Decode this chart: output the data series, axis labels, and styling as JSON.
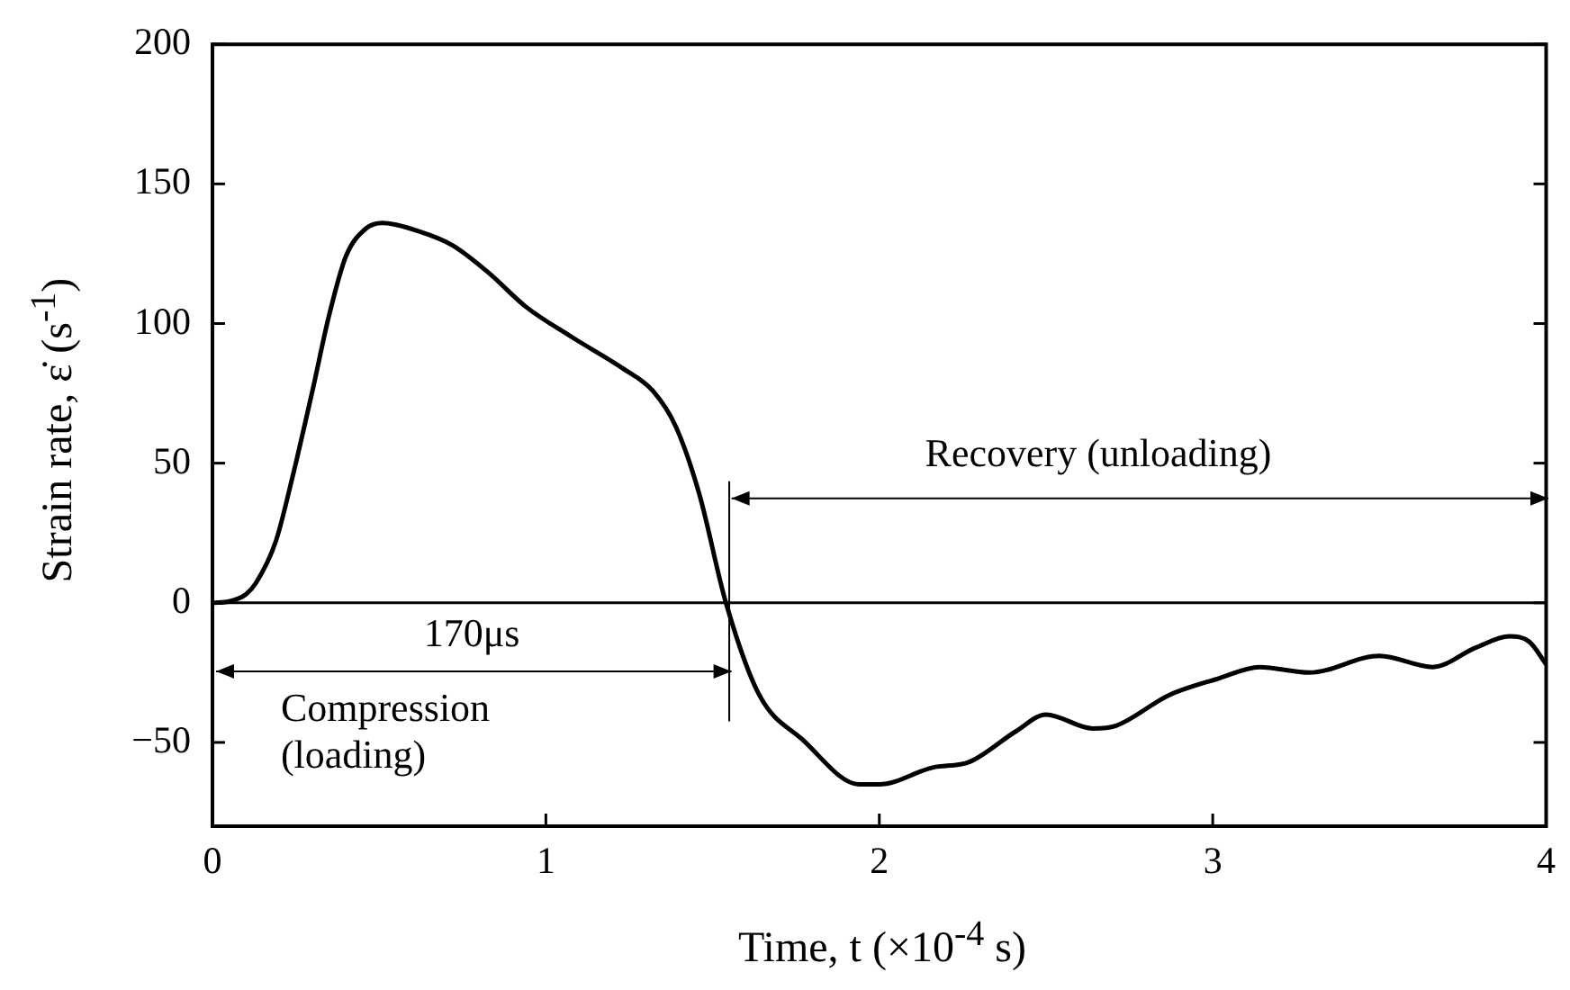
{
  "chart_data": {
    "type": "line",
    "xlabel": "Time, t (×10$^{-4}$ s)",
    "ylabel": "Strain rate, ε̇ (s$^{-1}$)",
    "xlim": [
      0,
      4
    ],
    "xticks": [
      0,
      1,
      2,
      3,
      4
    ],
    "ylim": [
      -80,
      200
    ],
    "yticks": [
      -50,
      0,
      50,
      100,
      150,
      200
    ],
    "grid": false,
    "legend": false,
    "marker": "none",
    "line_style": "solid",
    "series": [
      {
        "color": "#000000",
        "x": [
          0,
          0.05,
          0.1,
          0.13,
          0.19,
          0.24,
          0.3,
          0.35,
          0.4,
          0.46,
          0.51,
          0.62,
          0.72,
          0.83,
          0.94,
          1.08,
          1.23,
          1.32,
          1.39,
          1.46,
          1.54,
          1.64,
          1.77,
          1.94,
          2.0,
          2.16,
          2.27,
          2.41,
          2.5,
          2.64,
          2.71,
          2.87,
          3.02,
          3.14,
          3.29,
          3.5,
          3.66,
          3.79,
          3.89,
          3.95,
          4.0
        ],
        "values": [
          0,
          0.5,
          3,
          7,
          22,
          45,
          76,
          103,
          124,
          134,
          136,
          133,
          128,
          118,
          106,
          95,
          84,
          76,
          63,
          39,
          0,
          -33,
          -49,
          -65,
          -65,
          -59,
          -57,
          -46,
          -40,
          -45,
          -44,
          -33,
          -27,
          -23,
          -25,
          -19,
          -23,
          -16,
          -12,
          -14,
          -22
        ]
      }
    ],
    "ref_lines": [
      {
        "axis": "y",
        "value": 0,
        "color": "#000000"
      },
      {
        "axis": "x",
        "value": 1.55,
        "color": "#000000"
      }
    ],
    "annotations": [
      "Recovery (unloading)",
      "170μs",
      "Compression\n(loading)"
    ]
  }
}
